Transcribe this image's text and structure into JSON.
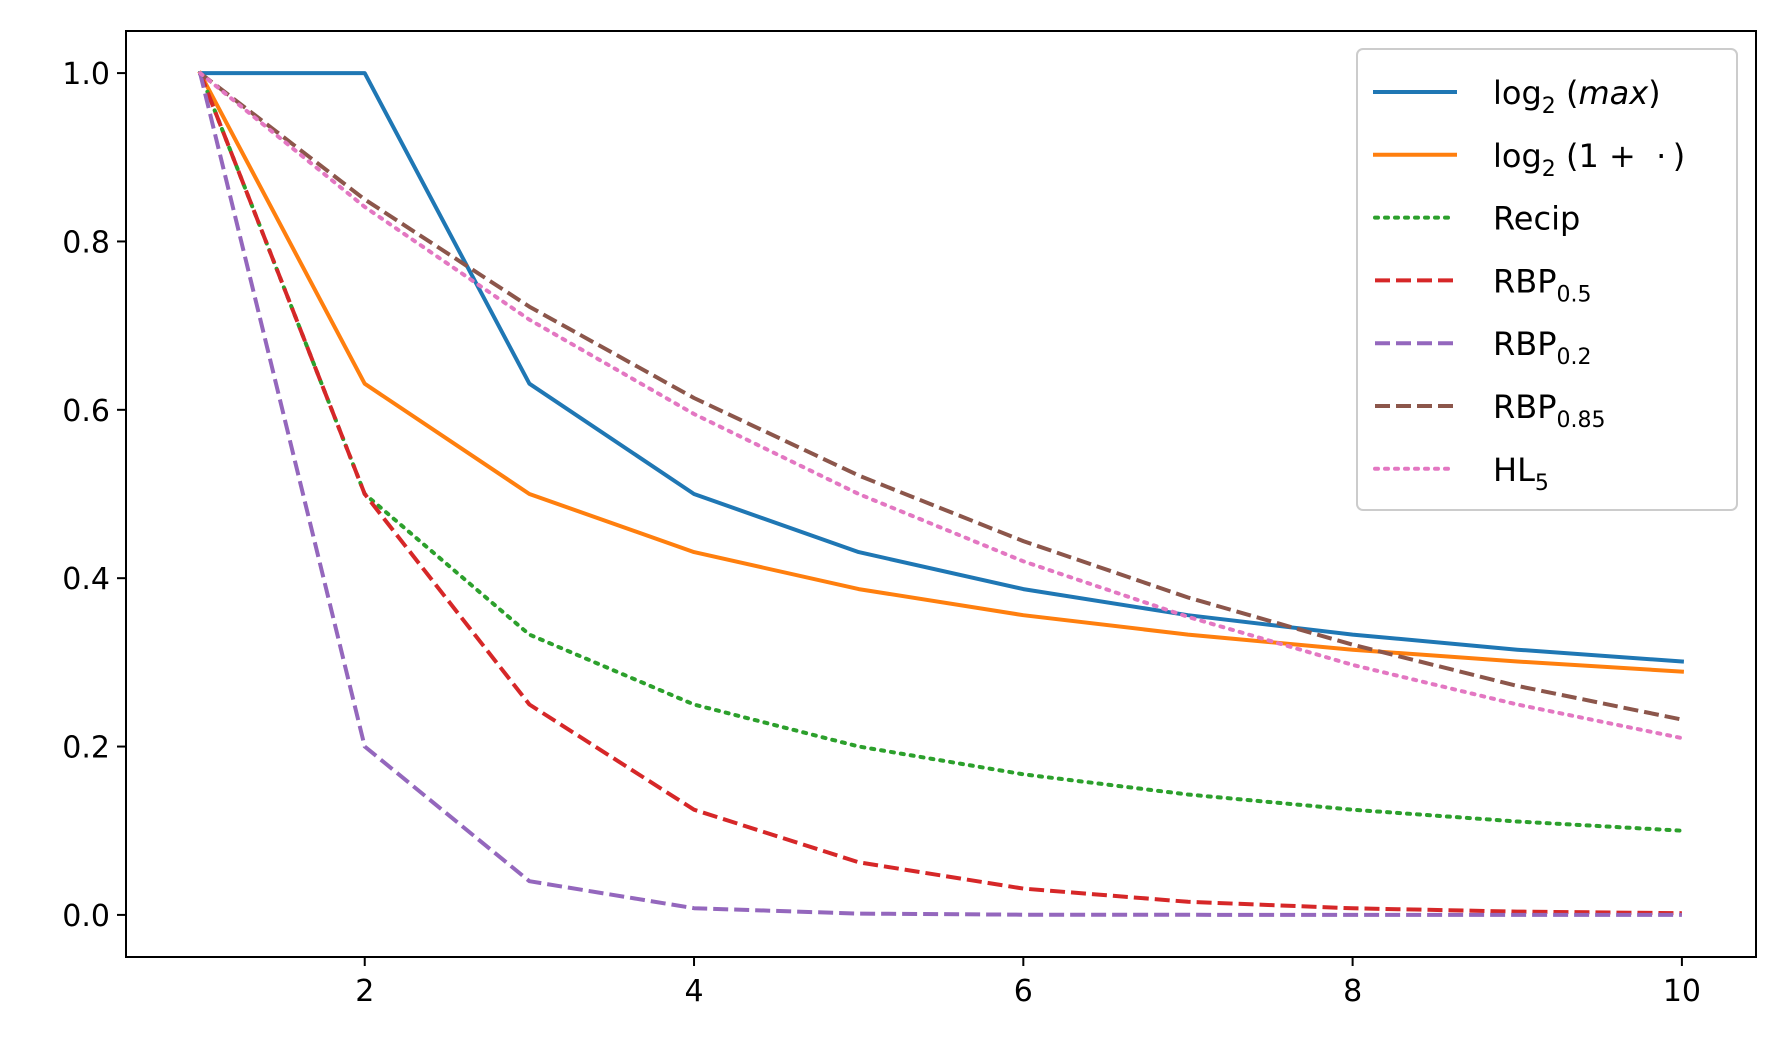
{
  "chart_data": {
    "type": "line",
    "title": "",
    "xlabel": "",
    "ylabel": "",
    "xlim": [
      0.55,
      10.45
    ],
    "ylim": [
      -0.05,
      1.05
    ],
    "xticks": [
      2,
      4,
      6,
      8,
      10
    ],
    "yticks": [
      0.0,
      0.2,
      0.4,
      0.6,
      0.8,
      1.0
    ],
    "xtick_labels": [
      "2",
      "4",
      "6",
      "8",
      "10"
    ],
    "ytick_labels": [
      "0.0",
      "0.2",
      "0.4",
      "0.6",
      "0.8",
      "1.0"
    ],
    "grid": false,
    "legend_position": "top-right",
    "x": [
      1,
      2,
      3,
      4,
      5,
      6,
      7,
      8,
      9,
      10
    ],
    "series": [
      {
        "name": "log₂ (max)",
        "legend": {
          "base": "log",
          "sub": "2",
          "rest": " (",
          "italic": "max",
          "tail": ")"
        },
        "color": "#1f77b4",
        "dash": "solid",
        "values": [
          1.0,
          1.0,
          0.631,
          0.5,
          0.431,
          0.387,
          0.356,
          0.333,
          0.315,
          0.301
        ]
      },
      {
        "name": "log₂ (1 + ·)",
        "legend": {
          "base": "log",
          "sub": "2",
          "rest": " (1 +  · )",
          "italic": "",
          "tail": ""
        },
        "color": "#ff7f0e",
        "dash": "solid",
        "values": [
          1.0,
          0.631,
          0.5,
          0.431,
          0.387,
          0.356,
          0.333,
          0.315,
          0.301,
          0.289
        ]
      },
      {
        "name": "Recip",
        "legend": {
          "base": "Recip",
          "sub": "",
          "rest": "",
          "italic": "",
          "tail": ""
        },
        "color": "#2ca02c",
        "dash": "dotted",
        "values": [
          1.0,
          0.5,
          0.333,
          0.25,
          0.2,
          0.167,
          0.143,
          0.125,
          0.111,
          0.1
        ]
      },
      {
        "name": "RBP0.5",
        "legend": {
          "base": "RBP",
          "sub": "0.5",
          "rest": "",
          "italic": "",
          "tail": ""
        },
        "color": "#d62728",
        "dash": "dashed",
        "values": [
          1.0,
          0.5,
          0.25,
          0.125,
          0.0625,
          0.03125,
          0.0156,
          0.0078,
          0.0039,
          0.002
        ]
      },
      {
        "name": "RBP0.2",
        "legend": {
          "base": "RBP",
          "sub": "0.2",
          "rest": "",
          "italic": "",
          "tail": ""
        },
        "color": "#9467bd",
        "dash": "dashed",
        "values": [
          1.0,
          0.2,
          0.04,
          0.008,
          0.0016,
          0.0003,
          0.0001,
          0.0,
          0.0,
          0.0
        ]
      },
      {
        "name": "RBP0.85",
        "legend": {
          "base": "RBP",
          "sub": "0.85",
          "rest": "",
          "italic": "",
          "tail": ""
        },
        "color": "#8c564b",
        "dash": "dashed",
        "values": [
          1.0,
          0.85,
          0.7225,
          0.614,
          0.522,
          0.444,
          0.377,
          0.321,
          0.272,
          0.232
        ]
      },
      {
        "name": "HL5",
        "legend": {
          "base": "HL",
          "sub": "5",
          "rest": "",
          "italic": "",
          "tail": ""
        },
        "color": "#e377c2",
        "dash": "dotted",
        "values": [
          1.0,
          0.841,
          0.707,
          0.595,
          0.5,
          0.42,
          0.354,
          0.297,
          0.25,
          0.21
        ]
      }
    ]
  }
}
